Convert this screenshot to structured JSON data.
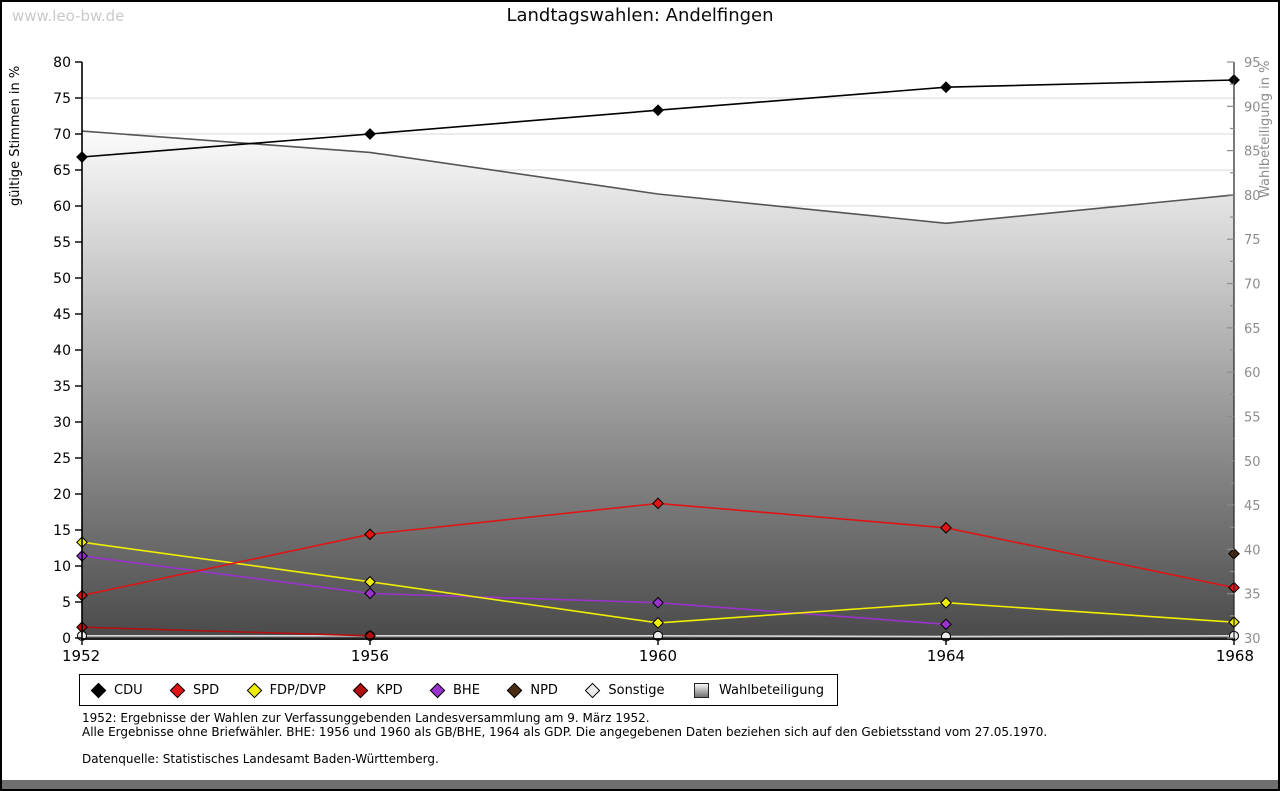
{
  "watermark": "www.leo-bw.de",
  "chart_data": {
    "type": "line",
    "title": "Landtagswahlen: Andelfingen",
    "x": [
      "1952",
      "1956",
      "1960",
      "1964",
      "1968"
    ],
    "grid": true,
    "legend_position": "bottom",
    "left_axis": {
      "label": "gültige Stimmen in %",
      "min": 0,
      "max": 80,
      "tick_step": 5,
      "ticks": [
        0,
        5,
        10,
        15,
        20,
        25,
        30,
        35,
        40,
        45,
        50,
        55,
        60,
        65,
        70,
        75,
        80
      ]
    },
    "right_axis": {
      "label": "Wahlbeteiligung in %",
      "min": 30,
      "max": 95,
      "tick_step": 5,
      "minor_tick_step": 2.5,
      "ticks": [
        30,
        35,
        40,
        45,
        50,
        55,
        60,
        65,
        70,
        75,
        80,
        85,
        90,
        95
      ]
    },
    "series": [
      {
        "name": "CDU",
        "axis": "left",
        "style": "line",
        "marker": "diamond",
        "color": "#000000",
        "values": [
          66.8,
          70.0,
          73.3,
          76.5,
          77.5
        ]
      },
      {
        "name": "SPD",
        "axis": "left",
        "style": "line",
        "marker": "diamond",
        "color": "#e01414",
        "values": [
          5.9,
          14.4,
          18.7,
          15.3,
          7.0
        ]
      },
      {
        "name": "FDP/DVP",
        "axis": "left",
        "style": "line",
        "marker": "diamond",
        "color": "#f0ee00",
        "values": [
          13.3,
          7.8,
          2.1,
          4.9,
          2.2
        ]
      },
      {
        "name": "KPD",
        "axis": "left",
        "style": "line",
        "marker": "diamond",
        "color": "#b01010",
        "values": [
          1.5,
          0.3,
          null,
          null,
          null
        ]
      },
      {
        "name": "BHE",
        "axis": "left",
        "style": "line",
        "marker": "diamond",
        "color": "#9933cc",
        "values": [
          11.4,
          6.2,
          4.9,
          1.9,
          null
        ]
      },
      {
        "name": "NPD",
        "axis": "left",
        "style": "line",
        "marker": "diamond",
        "color": "#4a2c10",
        "values": [
          null,
          null,
          null,
          null,
          11.7
        ]
      },
      {
        "name": "Sonstige",
        "axis": "left",
        "style": "line",
        "marker": "circle",
        "color": "#d9d9d9",
        "marker_fill": "#ececec",
        "values": [
          0.3,
          0.3,
          0.3,
          0.2,
          0.3
        ]
      },
      {
        "name": "Wahlbeteiligung",
        "axis": "right",
        "style": "area",
        "marker": "none",
        "color": "#555555",
        "area_fill_top": "#fbfbfb",
        "area_fill_bottom": "#4a4a4a",
        "values": [
          87.2,
          84.8,
          80.1,
          76.8,
          80.0
        ]
      }
    ]
  },
  "footnotes": {
    "line1": "1952: Ergebnisse der Wahlen zur Verfassunggebenden Landesversammlung am 9. März 1952.",
    "line2": "Alle Ergebnisse ohne Briefwähler. BHE: 1956 und 1960 als GB/BHE, 1964 als GDP. Die angegebenen Daten beziehen sich auf den Gebietsstand vom 27.05.1970.",
    "source": "Datenquelle: Statistisches Landesamt Baden-Württemberg."
  }
}
